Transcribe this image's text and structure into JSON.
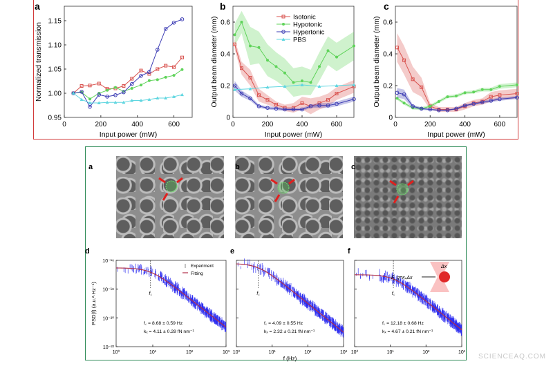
{
  "watermark": "SCIENCEAQ.COM",
  "micrographs": [
    {
      "label": "a"
    },
    {
      "label": "b"
    },
    {
      "label": "c"
    }
  ],
  "colors": {
    "isotonic": "#d9534f",
    "hypotonic": "#5fd35a",
    "hypertonic": "#3c3cb4",
    "pbs": "#5fd6e0",
    "experiment": "#2a2af0",
    "fitting": "#b0304a",
    "top_frame": "#d23a3a",
    "bottom_frame": "#2e8b57"
  },
  "chart_data": [
    {
      "panel": "a",
      "type": "line",
      "xlabel": "Input power (mW)",
      "ylabel": "Normalized transmission",
      "xlim": [
        0,
        700
      ],
      "ylim": [
        0.95,
        1.18
      ],
      "xticks": [
        "0",
        "200",
        "400",
        "600"
      ],
      "xtick_values": [
        0,
        200,
        400,
        600
      ],
      "yticks": [
        "0.95",
        "1.00",
        "1.05",
        "1.10",
        "1.15"
      ],
      "ytick_values": [
        0.95,
        1.0,
        1.05,
        1.1,
        1.15
      ],
      "x": [
        50,
        95,
        140,
        190,
        235,
        280,
        325,
        370,
        420,
        465,
        510,
        555,
        600,
        645
      ],
      "series": [
        {
          "key": "isotonic",
          "marker": "square",
          "values": [
            1.0,
            1.015,
            1.016,
            1.02,
            1.009,
            1.01,
            1.015,
            1.03,
            1.047,
            1.04,
            1.05,
            1.057,
            1.054,
            1.074
          ]
        },
        {
          "key": "hypotonic",
          "marker": "star",
          "values": [
            1.0,
            1.002,
            0.988,
            1.0,
            1.006,
            1.012,
            1.004,
            1.01,
            1.017,
            1.026,
            1.028,
            1.033,
            1.037,
            1.049
          ]
        },
        {
          "key": "hypertonic",
          "marker": "circle",
          "values": [
            1.0,
            1.003,
            0.972,
            0.997,
            0.993,
            0.996,
            1.002,
            1.019,
            1.036,
            1.044,
            1.09,
            1.133,
            1.146,
            1.153
          ]
        },
        {
          "key": "pbs",
          "marker": "triangle",
          "values": [
            1.0,
            0.987,
            0.98,
            0.98,
            0.981,
            0.981,
            0.981,
            0.985,
            0.985,
            0.987,
            0.99,
            0.99,
            0.993,
            0.997
          ]
        }
      ]
    },
    {
      "panel": "b",
      "type": "line",
      "xlabel": "Input power (mW)",
      "ylabel": "Output beam diameter (mm)",
      "xlim": [
        0,
        700
      ],
      "ylim": [
        0,
        0.7
      ],
      "xticks": [
        "0",
        "200",
        "400",
        "600"
      ],
      "xtick_values": [
        0,
        200,
        400,
        600
      ],
      "yticks": [
        "0",
        "0.2",
        "0.4",
        "0.6"
      ],
      "ytick_values": [
        0,
        0.2,
        0.4,
        0.6
      ],
      "legend": {
        "position": "top-right",
        "entries": [
          "Isotonic",
          "Hypotonic",
          "Hypertonic",
          "PBS"
        ]
      },
      "x": [
        10,
        50,
        100,
        150,
        200,
        250,
        300,
        350,
        400,
        450,
        500,
        550,
        600,
        700
      ],
      "series": [
        {
          "key": "hypotonic",
          "name": "Hypotonic",
          "marker": "star",
          "values": [
            0.52,
            0.6,
            0.45,
            0.44,
            0.36,
            0.32,
            0.28,
            0.22,
            0.23,
            0.22,
            0.32,
            0.42,
            0.38,
            0.45
          ],
          "band": [
            0.07,
            0.07,
            0.12,
            0.1,
            0.1,
            0.09,
            0.09,
            0.09,
            0.09,
            0.08,
            0.09,
            0.09,
            0.09,
            0.09
          ]
        },
        {
          "key": "isotonic",
          "name": "Isotonic",
          "marker": "square",
          "values": [
            0.46,
            0.31,
            0.25,
            0.14,
            0.11,
            0.08,
            0.06,
            0.06,
            0.09,
            0.07,
            0.09,
            0.11,
            0.15,
            0.195
          ],
          "band": [
            0.03,
            0.04,
            0.05,
            0.04,
            0.03,
            0.02,
            0.02,
            0.03,
            0.04,
            0.05,
            0.04,
            0.04,
            0.04,
            0.04
          ]
        },
        {
          "key": "hypertonic",
          "name": "Hypertonic",
          "marker": "circle",
          "values": [
            0.2,
            0.15,
            0.12,
            0.07,
            0.06,
            0.055,
            0.05,
            0.05,
            0.05,
            0.07,
            0.075,
            0.075,
            0.085,
            0.115
          ],
          "band": [
            0.03,
            0.02,
            0.015,
            0.01,
            0.01,
            0.01,
            0.01,
            0.01,
            0.01,
            0.01,
            0.015,
            0.015,
            0.015,
            0.015
          ]
        },
        {
          "key": "pbs",
          "name": "PBS",
          "marker": "triangle",
          "x": [
            10,
            100,
            200,
            300,
            400,
            500,
            600,
            700
          ],
          "values": [
            0.175,
            0.18,
            0.19,
            0.195,
            0.205,
            0.195,
            0.2,
            0.205
          ]
        }
      ]
    },
    {
      "panel": "c",
      "type": "line",
      "xlabel": "Input power (mW)",
      "ylabel": "Output beam diameter (mm)",
      "xlim": [
        0,
        700
      ],
      "ylim": [
        0,
        0.7
      ],
      "xticks": [
        "0",
        "200",
        "400",
        "600"
      ],
      "xtick_values": [
        0,
        200,
        400,
        600
      ],
      "yticks": [
        "0",
        "0.2",
        "0.4",
        "0.6"
      ],
      "ytick_values": [
        0,
        0.2,
        0.4,
        0.6
      ],
      "x": [
        10,
        50,
        100,
        150,
        200,
        250,
        300,
        350,
        400,
        450,
        500,
        550,
        600,
        700
      ],
      "series": [
        {
          "key": "isotonic",
          "marker": "square",
          "values": [
            0.44,
            0.36,
            0.24,
            0.19,
            0.07,
            0.05,
            0.05,
            0.05,
            0.07,
            0.09,
            0.1,
            0.13,
            0.14,
            0.15
          ],
          "band": [
            0.09,
            0.09,
            0.08,
            0.06,
            0.02,
            0.015,
            0.015,
            0.015,
            0.02,
            0.02,
            0.02,
            0.03,
            0.03,
            0.03
          ]
        },
        {
          "key": "hypotonic",
          "marker": "star",
          "values": [
            0.12,
            0.09,
            0.06,
            0.055,
            0.07,
            0.1,
            0.13,
            0.135,
            0.155,
            0.16,
            0.175,
            0.175,
            0.195,
            0.205
          ],
          "band": [
            0.01,
            0.01,
            0.01,
            0.01,
            0.01,
            0.01,
            0.01,
            0.01,
            0.01,
            0.01,
            0.012,
            0.012,
            0.015,
            0.015
          ]
        },
        {
          "key": "hypertonic",
          "marker": "circle",
          "values": [
            0.155,
            0.145,
            0.07,
            0.055,
            0.05,
            0.045,
            0.045,
            0.055,
            0.075,
            0.085,
            0.095,
            0.105,
            0.115,
            0.125
          ],
          "band": [
            0.03,
            0.03,
            0.01,
            0.008,
            0.006,
            0.006,
            0.006,
            0.006,
            0.008,
            0.008,
            0.008,
            0.01,
            0.01,
            0.01
          ]
        }
      ]
    },
    {
      "panel": "d",
      "type": "line",
      "scale": "log-log",
      "ylabel": "PSD(f) (a.u.²·Hz⁻¹)",
      "xlabel": "",
      "xlim": [
        1,
        1000
      ],
      "ylim": [
        1e-22,
        1e-16
      ],
      "xticks": [
        "10⁰",
        "10¹",
        "10²",
        "10³"
      ],
      "yticks": [
        "10⁻²²",
        "10⁻²⁰",
        "10⁻¹⁸",
        "10⁻¹⁶"
      ],
      "legend": {
        "position": "top-right",
        "entries": [
          "Experiment",
          "Fitting"
        ]
      },
      "fit": {
        "plateau": 3e-17,
        "fc": 8.68
      },
      "fc_label": "f꜀",
      "annotations": [
        "f꜀ = 8.68 ± 0.59 Hz",
        "kₓ = 4.11 ± 0.28 fN nm⁻¹"
      ]
    },
    {
      "panel": "e",
      "type": "line",
      "scale": "log-log",
      "xlabel": "f (Hz)",
      "xlim": [
        1,
        1000
      ],
      "ylim": [
        1e-22,
        1e-16
      ],
      "xticks": [
        "10⁰",
        "10¹",
        "10²",
        "10³"
      ],
      "fit": {
        "plateau": 6e-17,
        "fc": 4.09
      },
      "fc_label": "f꜀",
      "annotations": [
        "f꜀ = 4.09 ± 0.55 Hz",
        "kₓ = 2.32 ± 0.21 fN nm⁻¹"
      ]
    },
    {
      "panel": "f",
      "type": "line",
      "scale": "log-log",
      "xlim": [
        1,
        1000
      ],
      "ylim": [
        1e-22,
        1e-16
      ],
      "xticks": [
        "10⁰",
        "10¹",
        "10²",
        "10³"
      ],
      "fit": {
        "plateau": 1e-17,
        "fc": 12.18
      },
      "fc_label": "f꜀",
      "annotations": [
        "f꜀ = 12.18 ± 0.68 Hz",
        "kₓ = 4.67 ± 0.21 fN nm⁻¹"
      ],
      "inset": {
        "force_label": "F_g=κₓΔx",
        "displacement_label": "Δx"
      }
    }
  ]
}
